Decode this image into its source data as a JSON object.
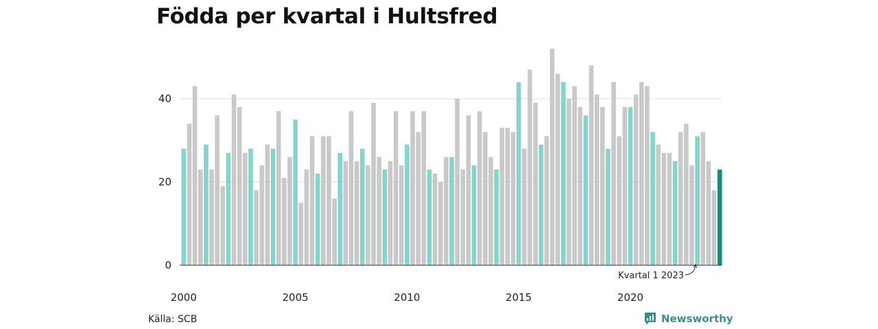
{
  "title": "Födda per kvartal i Hultsfred",
  "source": "Källa: SCB",
  "brand": "Newsworthy",
  "colors": {
    "q1": "#85d4cd",
    "other": "#c9c9c9",
    "latest": "#1a8c7e",
    "brand": "#3a8f86"
  },
  "chart_data": {
    "type": "bar",
    "title": "Födda per kvartal i Hultsfred",
    "xlabel": "",
    "ylabel": "",
    "ylim": [
      0,
      55
    ],
    "yticks": [
      0,
      20,
      40
    ],
    "xticks": [
      "2000",
      "2005",
      "2010",
      "2015",
      "2020"
    ],
    "grid": true,
    "start_year": 2000,
    "note": "Kvartal 1 2023",
    "values": [
      28,
      34,
      43,
      23,
      29,
      23,
      36,
      19,
      27,
      41,
      38,
      27,
      28,
      18,
      24,
      29,
      28,
      37,
      21,
      26,
      35,
      15,
      23,
      31,
      22,
      31,
      31,
      16,
      27,
      25,
      37,
      25,
      28,
      24,
      39,
      26,
      23,
      25,
      37,
      24,
      29,
      37,
      32,
      37,
      23,
      22,
      20,
      26,
      26,
      40,
      23,
      36,
      24,
      37,
      32,
      26,
      23,
      33,
      33,
      32,
      44,
      28,
      47,
      39,
      29,
      31,
      52,
      46,
      44,
      40,
      43,
      38,
      36,
      48,
      41,
      38,
      28,
      44,
      31,
      38,
      38,
      41,
      44,
      43,
      32,
      29,
      27,
      27,
      25,
      32,
      34,
      24,
      31,
      32,
      25,
      18,
      23
    ]
  }
}
